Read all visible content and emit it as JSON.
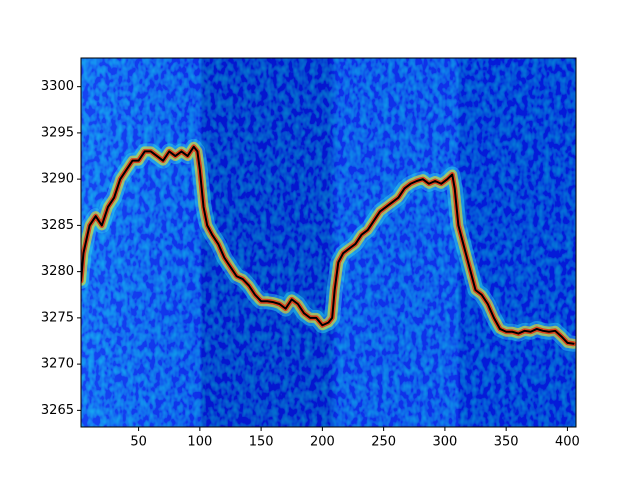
{
  "chart_data": {
    "type": "line",
    "x": [
      3,
      5,
      10,
      15,
      20,
      25,
      30,
      35,
      40,
      45,
      50,
      55,
      60,
      65,
      70,
      75,
      80,
      85,
      90,
      95,
      98,
      100,
      103,
      106,
      110,
      115,
      120,
      125,
      130,
      135,
      140,
      145,
      150,
      155,
      160,
      165,
      170,
      175,
      180,
      185,
      190,
      195,
      200,
      205,
      208,
      210,
      213,
      217,
      222,
      227,
      232,
      237,
      242,
      247,
      252,
      257,
      262,
      267,
      272,
      277,
      282,
      287,
      292,
      297,
      302,
      306,
      308,
      311,
      315,
      320,
      325,
      330,
      335,
      340,
      345,
      350,
      355,
      360,
      365,
      370,
      375,
      380,
      385,
      390,
      395,
      400,
      405
    ],
    "series": [
      {
        "color": "#000000",
        "values": [
          3279,
          3282,
          3285,
          3286,
          3285,
          3287,
          3288,
          3290,
          3291,
          3292,
          3292,
          3293,
          3293,
          3292.5,
          3292,
          3293,
          3292.5,
          3293,
          3292.5,
          3293.5,
          3293,
          3291,
          3287,
          3285,
          3284,
          3283,
          3281.5,
          3280.5,
          3279.5,
          3279.2,
          3278.5,
          3277.5,
          3276.8,
          3276.8,
          3276.7,
          3276.5,
          3276,
          3277,
          3276.5,
          3275.5,
          3275,
          3275,
          3274.2,
          3274.5,
          3275,
          3278,
          3281,
          3282,
          3282.5,
          3283,
          3284,
          3284.5,
          3285.5,
          3286.5,
          3287,
          3287.5,
          3288,
          3289,
          3289.5,
          3289.8,
          3290,
          3289.5,
          3289.8,
          3289.5,
          3290,
          3290.5,
          3289,
          3285,
          3283,
          3280.5,
          3278,
          3277.5,
          3276.5,
          3275,
          3273.8,
          3273.5,
          3273.5,
          3273.3,
          3273.6,
          3273.5,
          3273.8,
          3273.6,
          3273.5,
          3273.6,
          3273,
          3272.3,
          3272.2
        ]
      }
    ],
    "xlim": [
      3,
      407
    ],
    "xticks": [
      50,
      100,
      150,
      200,
      250,
      300,
      350,
      400
    ],
    "ylim": [
      3263.2,
      3303.1
    ],
    "yticks": [
      3265,
      3270,
      3275,
      3280,
      3285,
      3290,
      3295,
      3300
    ]
  }
}
